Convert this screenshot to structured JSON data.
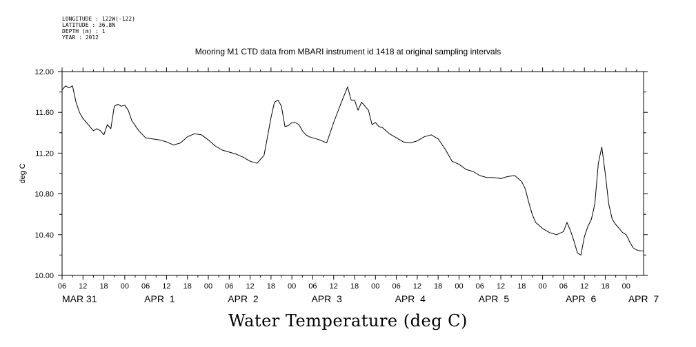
{
  "header": {
    "longitude": "LONGITUDE : 122W(-122)",
    "latitude": "LATITUDE : 36.8N",
    "depth": "DEPTH (m) : 1",
    "year": "YEAR : 2012"
  },
  "chart_data": {
    "type": "line",
    "title": "Mooring M1 CTD data from MBARI instrument id 1418 at original sampling intervals",
    "xlabel": "Water Temperature (deg C)",
    "ylabel": "deg C",
    "ylim": [
      10.0,
      12.0
    ],
    "xlim": [
      0,
      167
    ],
    "x_unit": "hours since 2012-03-31 06:00",
    "y_ticks": [
      "10.00",
      "10.40",
      "10.80",
      "11.20",
      "11.60",
      "12.00"
    ],
    "x_hour_ticks": [
      {
        "x": 0,
        "label": "06"
      },
      {
        "x": 6,
        "label": "12"
      },
      {
        "x": 12,
        "label": "18"
      },
      {
        "x": 18,
        "label": "00"
      },
      {
        "x": 24,
        "label": "06"
      },
      {
        "x": 30,
        "label": "12"
      },
      {
        "x": 36,
        "label": "18"
      },
      {
        "x": 42,
        "label": "00"
      },
      {
        "x": 48,
        "label": "06"
      },
      {
        "x": 54,
        "label": "12"
      },
      {
        "x": 60,
        "label": "18"
      },
      {
        "x": 66,
        "label": "00"
      },
      {
        "x": 72,
        "label": "06"
      },
      {
        "x": 78,
        "label": "12"
      },
      {
        "x": 84,
        "label": "18"
      },
      {
        "x": 90,
        "label": "00"
      },
      {
        "x": 96,
        "label": "06"
      },
      {
        "x": 102,
        "label": "12"
      },
      {
        "x": 108,
        "label": "18"
      },
      {
        "x": 114,
        "label": "00"
      },
      {
        "x": 120,
        "label": "06"
      },
      {
        "x": 126,
        "label": "12"
      },
      {
        "x": 132,
        "label": "18"
      },
      {
        "x": 138,
        "label": "00"
      },
      {
        "x": 144,
        "label": "06"
      },
      {
        "x": 150,
        "label": "12"
      },
      {
        "x": 156,
        "label": "18"
      },
      {
        "x": 162,
        "label": "00"
      }
    ],
    "x_date_ticks": [
      {
        "x": 5,
        "label": "MAR 31"
      },
      {
        "x": 28,
        "label": "APR  1"
      },
      {
        "x": 52,
        "label": "APR  2"
      },
      {
        "x": 76,
        "label": "APR  3"
      },
      {
        "x": 100,
        "label": "APR  4"
      },
      {
        "x": 124,
        "label": "APR  5"
      },
      {
        "x": 149,
        "label": "APR  6"
      },
      {
        "x": 167,
        "label": "APR  7"
      }
    ],
    "grid": false,
    "line_color": "#000000",
    "series": [
      {
        "x": [
          0,
          1,
          2,
          3,
          4,
          5,
          6,
          7,
          8,
          9,
          10,
          11,
          12,
          13,
          14,
          15,
          16,
          17,
          18,
          19,
          20,
          22,
          24,
          26,
          28,
          30,
          32,
          34,
          36,
          38,
          40,
          42,
          44,
          46,
          48,
          50,
          52,
          54,
          56,
          58,
          59,
          60,
          61,
          62,
          63,
          64,
          65,
          66,
          67,
          68,
          69,
          70,
          71,
          72,
          74,
          76,
          78,
          80,
          82,
          83,
          84,
          85,
          86,
          87,
          88,
          89,
          90,
          91,
          92,
          93,
          94,
          95,
          96,
          98,
          100,
          102,
          104,
          106,
          108,
          110,
          112,
          114,
          116,
          118,
          120,
          122,
          124,
          126,
          128,
          130,
          132,
          133,
          134,
          135,
          136,
          137,
          138,
          140,
          142,
          144,
          145,
          146,
          147,
          148,
          149,
          150,
          151,
          152,
          153,
          154,
          155,
          156,
          157,
          158,
          159,
          160,
          161,
          162,
          163,
          164,
          165,
          166,
          167
        ],
        "y": [
          11.82,
          11.86,
          11.84,
          11.86,
          11.7,
          11.6,
          11.54,
          11.5,
          11.46,
          11.42,
          11.44,
          11.42,
          11.38,
          11.48,
          11.44,
          11.66,
          11.68,
          11.66,
          11.67,
          11.62,
          11.52,
          11.42,
          11.35,
          11.34,
          11.33,
          11.31,
          11.28,
          11.3,
          11.36,
          11.39,
          11.38,
          11.33,
          11.27,
          11.23,
          11.21,
          11.19,
          11.16,
          11.12,
          11.1,
          11.18,
          11.36,
          11.55,
          11.7,
          11.72,
          11.66,
          11.46,
          11.47,
          11.5,
          11.5,
          11.48,
          11.42,
          11.38,
          11.36,
          11.35,
          11.33,
          11.3,
          11.5,
          11.68,
          11.85,
          11.72,
          11.72,
          11.62,
          11.7,
          11.66,
          11.62,
          11.48,
          11.5,
          11.46,
          11.45,
          11.42,
          11.39,
          11.37,
          11.35,
          11.31,
          11.3,
          11.32,
          11.36,
          11.38,
          11.34,
          11.24,
          11.12,
          11.09,
          11.04,
          11.02,
          10.98,
          10.96,
          10.96,
          10.95,
          10.97,
          10.98,
          10.92,
          10.85,
          10.72,
          10.6,
          10.52,
          10.49,
          10.46,
          10.42,
          10.4,
          10.43,
          10.52,
          10.44,
          10.34,
          10.22,
          10.2,
          10.38,
          10.48,
          10.55,
          10.7,
          11.1,
          11.26,
          11.0,
          10.7,
          10.55,
          10.5,
          10.46,
          10.42,
          10.4,
          10.33,
          10.27,
          10.25,
          10.24,
          10.24
        ]
      }
    ]
  }
}
